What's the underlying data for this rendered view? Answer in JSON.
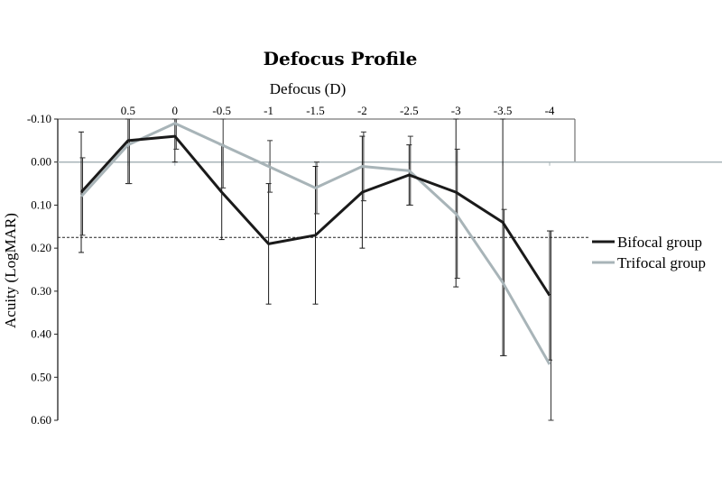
{
  "chart_data": {
    "type": "line",
    "title": "Defocus Profile",
    "xlabel": "Defocus (D)",
    "ylabel": "Acuity (LogMAR)",
    "x_tick_labels": [
      "0.5",
      "0",
      "-0.5",
      "-1",
      "-1.5",
      "-2",
      "-2.5",
      "-3",
      "-3.5",
      "-4"
    ],
    "y_tick_labels": [
      "-0.10",
      "0.00",
      "0.10",
      "0.20",
      "0.30",
      "0.40",
      "0.50",
      "0.60"
    ],
    "x": [
      1.0,
      0.5,
      0,
      -0.5,
      -1,
      -1.5,
      -2,
      -2.5,
      -3,
      -3.5,
      -4
    ],
    "ylim": [
      -0.1,
      0.6
    ],
    "y_inverted": true,
    "reference_line_y": 0.175,
    "grid": false,
    "legend_position": "right",
    "series": [
      {
        "name": "Bifocal group",
        "color": "#1a1a1a",
        "values": [
          0.07,
          -0.05,
          -0.06,
          0.07,
          0.19,
          0.17,
          0.07,
          0.03,
          0.07,
          0.14,
          0.31
        ],
        "error": [
          0.14,
          0.1,
          0.06,
          0.11,
          0.14,
          0.16,
          0.13,
          0.07,
          0.22,
          0.31,
          0.15
        ]
      },
      {
        "name": "Trifocal group",
        "color": "#a8b4b8",
        "values": [
          0.08,
          -0.04,
          -0.09,
          -0.04,
          0.01,
          0.06,
          0.01,
          0.02,
          0.12,
          0.28,
          0.47
        ],
        "error": [
          0.09,
          0.09,
          0.06,
          0.1,
          0.06,
          0.06,
          0.08,
          0.08,
          0.15,
          0.17,
          0.31
        ]
      }
    ]
  }
}
